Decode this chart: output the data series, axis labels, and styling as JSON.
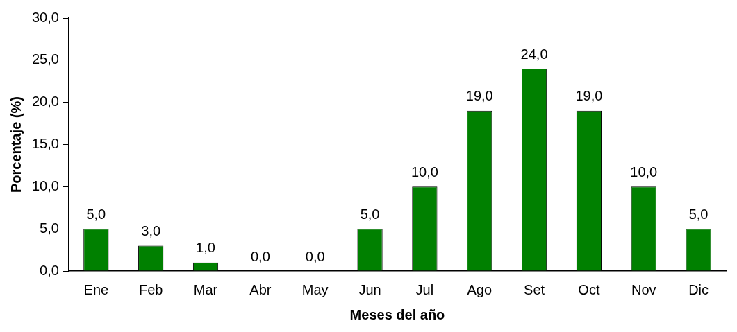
{
  "chart_data": {
    "type": "bar",
    "xlabel": "Meses del año",
    "ylabel": "Porcentaje (%)",
    "categories": [
      "Ene",
      "Feb",
      "Mar",
      "Abr",
      "May",
      "Jun",
      "Jul",
      "Ago",
      "Set",
      "Oct",
      "Nov",
      "Dic"
    ],
    "values": [
      5,
      3,
      1,
      0,
      0,
      5,
      10,
      19,
      24,
      19,
      10,
      5
    ],
    "value_labels": [
      "5,0",
      "3,0",
      "1,0",
      "0,0",
      "0,0",
      "5,0",
      "10,0",
      "19,0",
      "24,0",
      "19,0",
      "10,0",
      "5,0"
    ],
    "color": "#008000",
    "ylim": [
      0,
      30
    ],
    "yticks": [
      {
        "value": 0,
        "label": "0,0"
      },
      {
        "value": 5,
        "label": "5,0"
      },
      {
        "value": 10,
        "label": "10,0"
      },
      {
        "value": 15,
        "label": "15,0"
      },
      {
        "value": 20,
        "label": "20,0"
      },
      {
        "value": 25,
        "label": "25,0"
      },
      {
        "value": 30,
        "label": "30,0"
      }
    ],
    "grid": false,
    "legend": false
  }
}
